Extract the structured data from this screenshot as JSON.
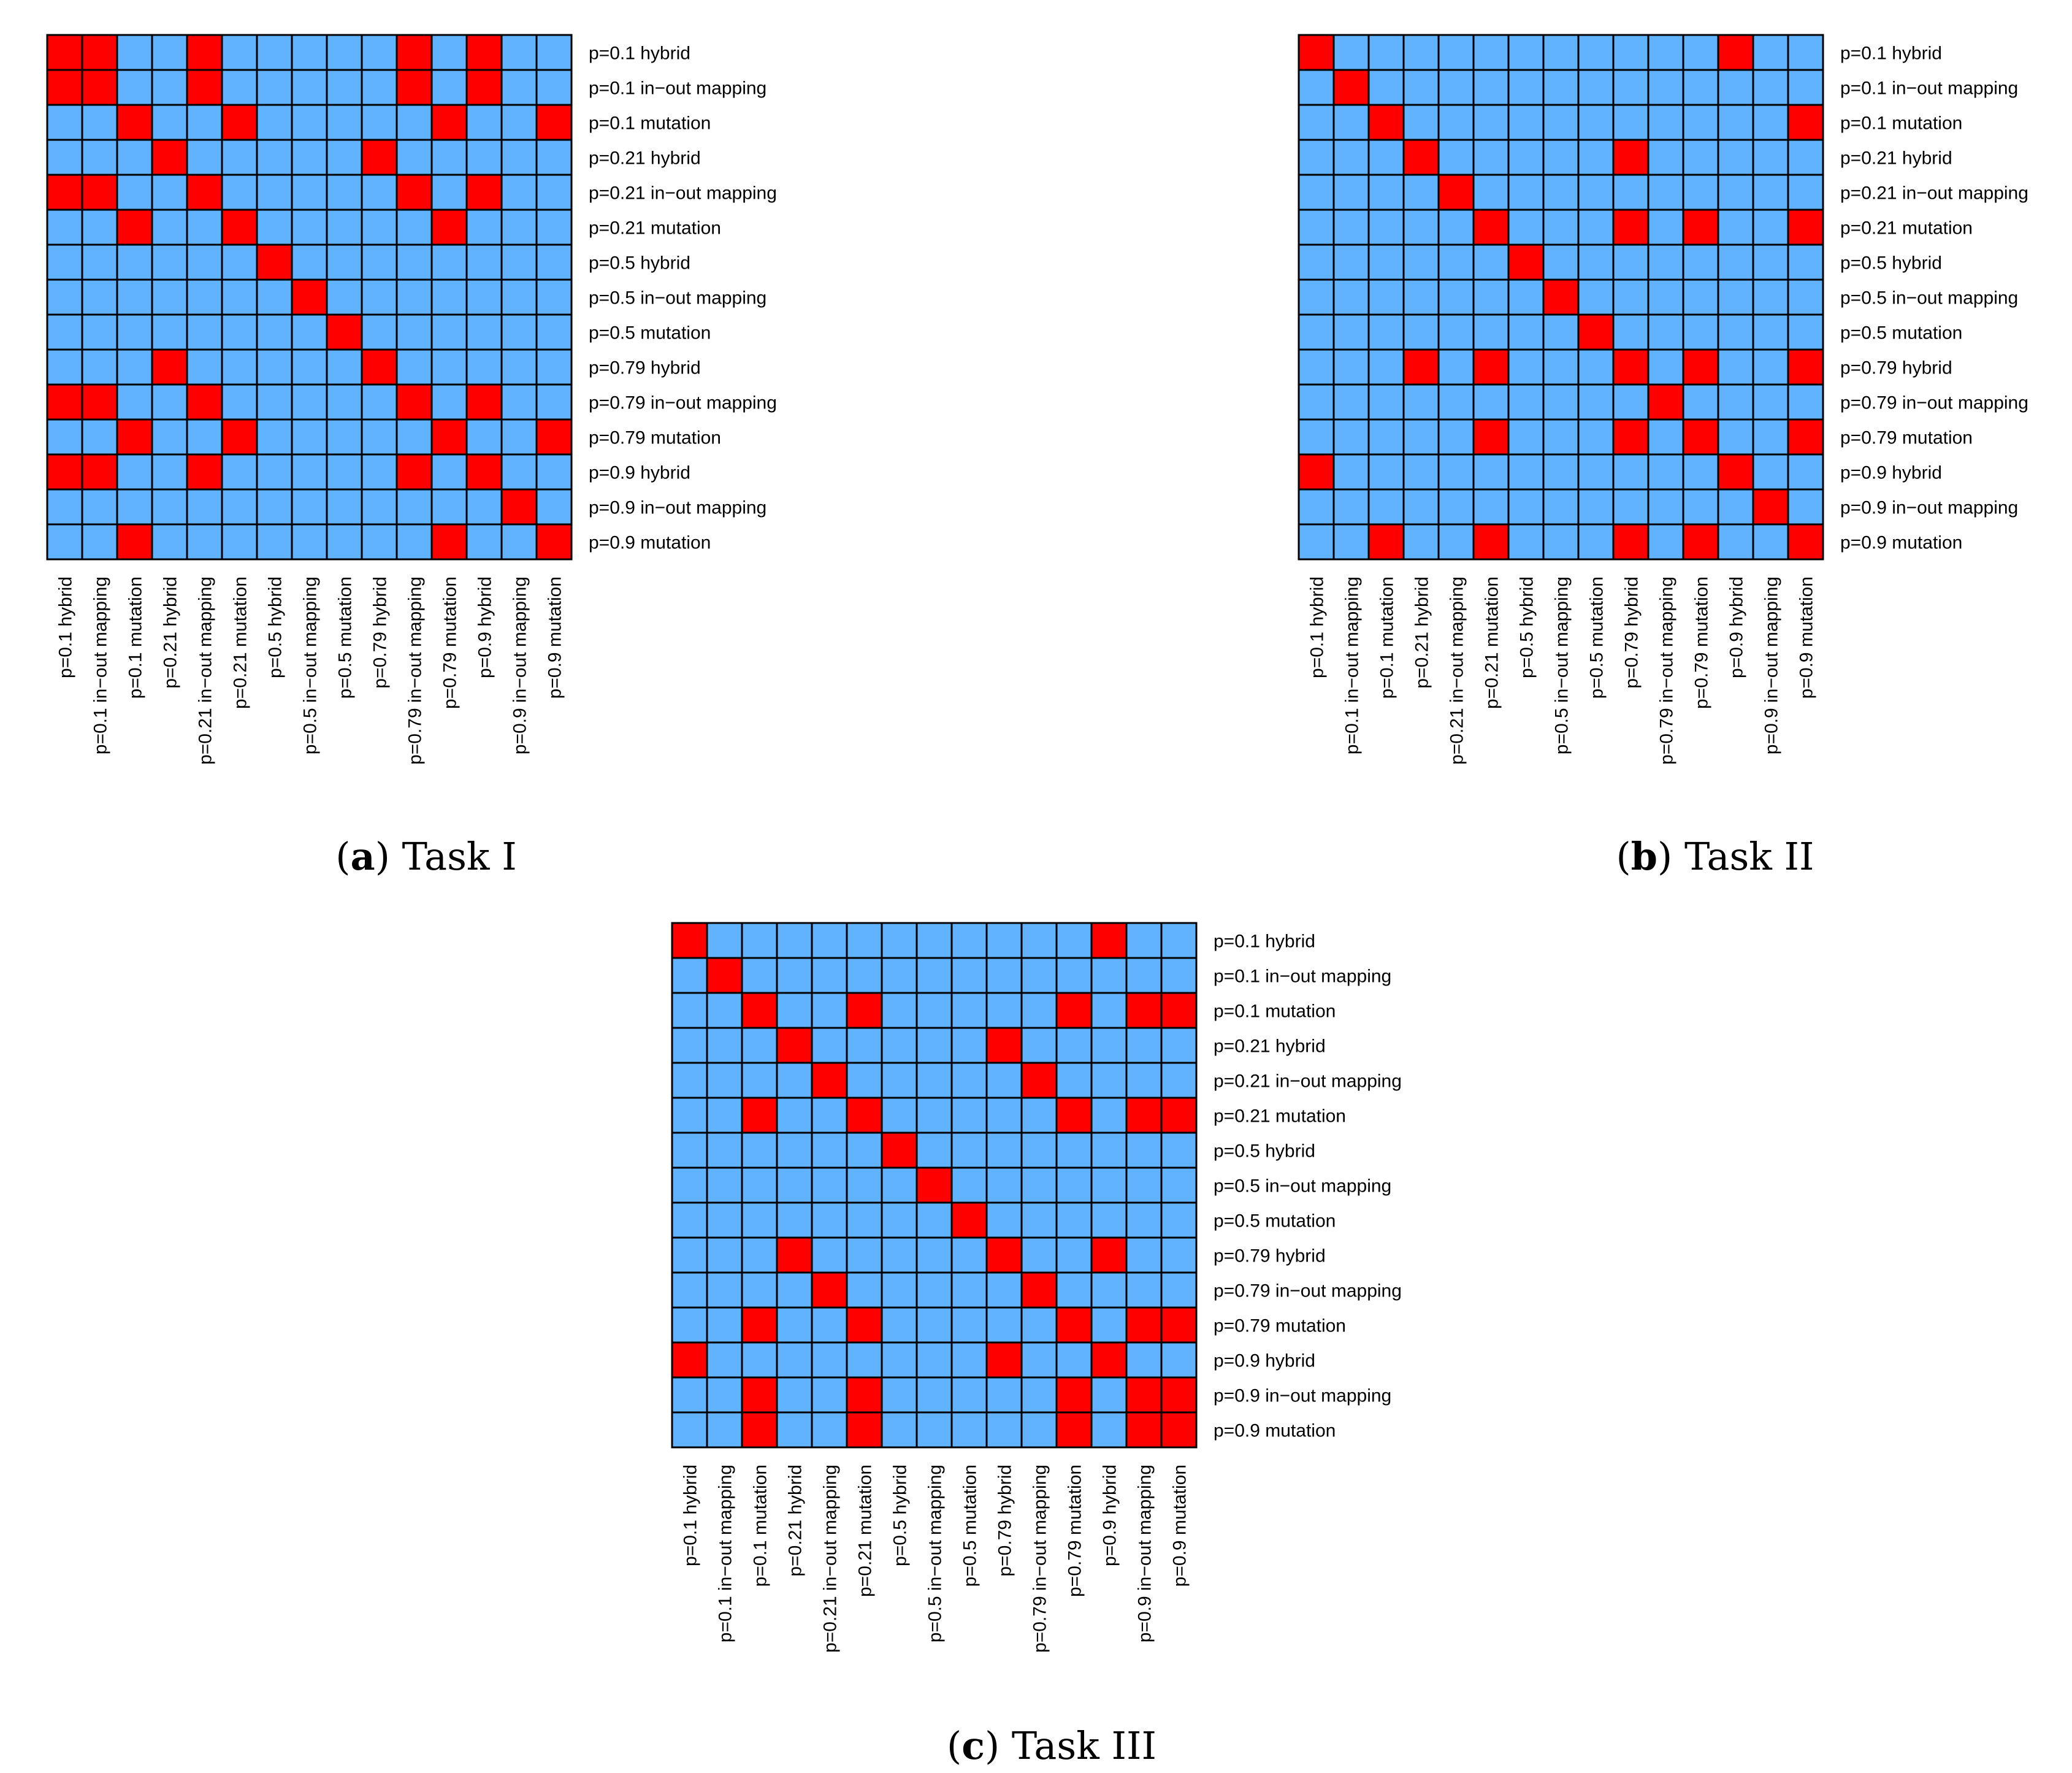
{
  "colors": {
    "positive": "#ff0000",
    "negative": "#62b3ff",
    "grid": "#000000",
    "background": "#ffffff"
  },
  "chart_data": [
    {
      "type": "heatmap",
      "id": "a",
      "caption_label": "a",
      "caption_text": "Task I",
      "categories": [
        "p=0.1 hybrid",
        "p=0.1 in−out mapping",
        "p=0.1 mutation",
        "p=0.21 hybrid",
        "p=0.21 in−out mapping",
        "p=0.21 mutation",
        "p=0.5 hybrid",
        "p=0.5 in−out mapping",
        "p=0.5 mutation",
        "p=0.79 hybrid",
        "p=0.79 in−out mapping",
        "p=0.79 mutation",
        "p=0.9 hybrid",
        "p=0.9 in−out mapping",
        "p=0.9 mutation"
      ],
      "matrix": [
        [
          1,
          1,
          0,
          0,
          1,
          0,
          0,
          0,
          0,
          0,
          1,
          0,
          1,
          0,
          0
        ],
        [
          1,
          1,
          0,
          0,
          1,
          0,
          0,
          0,
          0,
          0,
          1,
          0,
          1,
          0,
          0
        ],
        [
          0,
          0,
          1,
          0,
          0,
          1,
          0,
          0,
          0,
          0,
          0,
          1,
          0,
          0,
          1
        ],
        [
          0,
          0,
          0,
          1,
          0,
          0,
          0,
          0,
          0,
          1,
          0,
          0,
          0,
          0,
          0
        ],
        [
          1,
          1,
          0,
          0,
          1,
          0,
          0,
          0,
          0,
          0,
          1,
          0,
          1,
          0,
          0
        ],
        [
          0,
          0,
          1,
          0,
          0,
          1,
          0,
          0,
          0,
          0,
          0,
          1,
          0,
          0,
          0
        ],
        [
          0,
          0,
          0,
          0,
          0,
          0,
          1,
          0,
          0,
          0,
          0,
          0,
          0,
          0,
          0
        ],
        [
          0,
          0,
          0,
          0,
          0,
          0,
          0,
          1,
          0,
          0,
          0,
          0,
          0,
          0,
          0
        ],
        [
          0,
          0,
          0,
          0,
          0,
          0,
          0,
          0,
          1,
          0,
          0,
          0,
          0,
          0,
          0
        ],
        [
          0,
          0,
          0,
          1,
          0,
          0,
          0,
          0,
          0,
          1,
          0,
          0,
          0,
          0,
          0
        ],
        [
          1,
          1,
          0,
          0,
          1,
          0,
          0,
          0,
          0,
          0,
          1,
          0,
          1,
          0,
          0
        ],
        [
          0,
          0,
          1,
          0,
          0,
          1,
          0,
          0,
          0,
          0,
          0,
          1,
          0,
          0,
          1
        ],
        [
          1,
          1,
          0,
          0,
          1,
          0,
          0,
          0,
          0,
          0,
          1,
          0,
          1,
          0,
          0
        ],
        [
          0,
          0,
          0,
          0,
          0,
          0,
          0,
          0,
          0,
          0,
          0,
          0,
          0,
          1,
          0
        ],
        [
          0,
          0,
          1,
          0,
          0,
          0,
          0,
          0,
          0,
          0,
          0,
          1,
          0,
          0,
          1
        ]
      ]
    },
    {
      "type": "heatmap",
      "id": "b",
      "caption_label": "b",
      "caption_text": "Task II",
      "categories": [
        "p=0.1 hybrid",
        "p=0.1 in−out mapping",
        "p=0.1 mutation",
        "p=0.21 hybrid",
        "p=0.21 in−out mapping",
        "p=0.21 mutation",
        "p=0.5 hybrid",
        "p=0.5 in−out mapping",
        "p=0.5 mutation",
        "p=0.79 hybrid",
        "p=0.79 in−out mapping",
        "p=0.79 mutation",
        "p=0.9 hybrid",
        "p=0.9 in−out mapping",
        "p=0.9 mutation"
      ],
      "matrix": [
        [
          1,
          0,
          0,
          0,
          0,
          0,
          0,
          0,
          0,
          0,
          0,
          0,
          1,
          0,
          0
        ],
        [
          0,
          1,
          0,
          0,
          0,
          0,
          0,
          0,
          0,
          0,
          0,
          0,
          0,
          0,
          0
        ],
        [
          0,
          0,
          1,
          0,
          0,
          0,
          0,
          0,
          0,
          0,
          0,
          0,
          0,
          0,
          1
        ],
        [
          0,
          0,
          0,
          1,
          0,
          0,
          0,
          0,
          0,
          1,
          0,
          0,
          0,
          0,
          0
        ],
        [
          0,
          0,
          0,
          0,
          1,
          0,
          0,
          0,
          0,
          0,
          0,
          0,
          0,
          0,
          0
        ],
        [
          0,
          0,
          0,
          0,
          0,
          1,
          0,
          0,
          0,
          1,
          0,
          1,
          0,
          0,
          1
        ],
        [
          0,
          0,
          0,
          0,
          0,
          0,
          1,
          0,
          0,
          0,
          0,
          0,
          0,
          0,
          0
        ],
        [
          0,
          0,
          0,
          0,
          0,
          0,
          0,
          1,
          0,
          0,
          0,
          0,
          0,
          0,
          0
        ],
        [
          0,
          0,
          0,
          0,
          0,
          0,
          0,
          0,
          1,
          0,
          0,
          0,
          0,
          0,
          0
        ],
        [
          0,
          0,
          0,
          1,
          0,
          1,
          0,
          0,
          0,
          1,
          0,
          1,
          0,
          0,
          1
        ],
        [
          0,
          0,
          0,
          0,
          0,
          0,
          0,
          0,
          0,
          0,
          1,
          0,
          0,
          0,
          0
        ],
        [
          0,
          0,
          0,
          0,
          0,
          1,
          0,
          0,
          0,
          1,
          0,
          1,
          0,
          0,
          1
        ],
        [
          1,
          0,
          0,
          0,
          0,
          0,
          0,
          0,
          0,
          0,
          0,
          0,
          1,
          0,
          0
        ],
        [
          0,
          0,
          0,
          0,
          0,
          0,
          0,
          0,
          0,
          0,
          0,
          0,
          0,
          1,
          0
        ],
        [
          0,
          0,
          1,
          0,
          0,
          1,
          0,
          0,
          0,
          1,
          0,
          1,
          0,
          0,
          1
        ]
      ]
    },
    {
      "type": "heatmap",
      "id": "c",
      "caption_label": "c",
      "caption_text": "Task III",
      "categories": [
        "p=0.1 hybrid",
        "p=0.1 in−out mapping",
        "p=0.1 mutation",
        "p=0.21 hybrid",
        "p=0.21 in−out mapping",
        "p=0.21 mutation",
        "p=0.5 hybrid",
        "p=0.5 in−out mapping",
        "p=0.5 mutation",
        "p=0.79 hybrid",
        "p=0.79 in−out mapping",
        "p=0.79 mutation",
        "p=0.9 hybrid",
        "p=0.9 in−out mapping",
        "p=0.9 mutation"
      ],
      "matrix": [
        [
          1,
          0,
          0,
          0,
          0,
          0,
          0,
          0,
          0,
          0,
          0,
          0,
          1,
          0,
          0
        ],
        [
          0,
          1,
          0,
          0,
          0,
          0,
          0,
          0,
          0,
          0,
          0,
          0,
          0,
          0,
          0
        ],
        [
          0,
          0,
          1,
          0,
          0,
          1,
          0,
          0,
          0,
          0,
          0,
          1,
          0,
          1,
          1
        ],
        [
          0,
          0,
          0,
          1,
          0,
          0,
          0,
          0,
          0,
          1,
          0,
          0,
          0,
          0,
          0
        ],
        [
          0,
          0,
          0,
          0,
          1,
          0,
          0,
          0,
          0,
          0,
          1,
          0,
          0,
          0,
          0
        ],
        [
          0,
          0,
          1,
          0,
          0,
          1,
          0,
          0,
          0,
          0,
          0,
          1,
          0,
          1,
          1
        ],
        [
          0,
          0,
          0,
          0,
          0,
          0,
          1,
          0,
          0,
          0,
          0,
          0,
          0,
          0,
          0
        ],
        [
          0,
          0,
          0,
          0,
          0,
          0,
          0,
          1,
          0,
          0,
          0,
          0,
          0,
          0,
          0
        ],
        [
          0,
          0,
          0,
          0,
          0,
          0,
          0,
          0,
          1,
          0,
          0,
          0,
          0,
          0,
          0
        ],
        [
          0,
          0,
          0,
          1,
          0,
          0,
          0,
          0,
          0,
          1,
          0,
          0,
          1,
          0,
          0
        ],
        [
          0,
          0,
          0,
          0,
          1,
          0,
          0,
          0,
          0,
          0,
          1,
          0,
          0,
          0,
          0
        ],
        [
          0,
          0,
          1,
          0,
          0,
          1,
          0,
          0,
          0,
          0,
          0,
          1,
          0,
          1,
          1
        ],
        [
          1,
          0,
          0,
          0,
          0,
          0,
          0,
          0,
          0,
          1,
          0,
          0,
          1,
          0,
          0
        ],
        [
          0,
          0,
          1,
          0,
          0,
          1,
          0,
          0,
          0,
          0,
          0,
          1,
          0,
          1,
          1
        ],
        [
          0,
          0,
          1,
          0,
          0,
          1,
          0,
          0,
          0,
          0,
          0,
          1,
          0,
          1,
          1
        ]
      ]
    }
  ]
}
